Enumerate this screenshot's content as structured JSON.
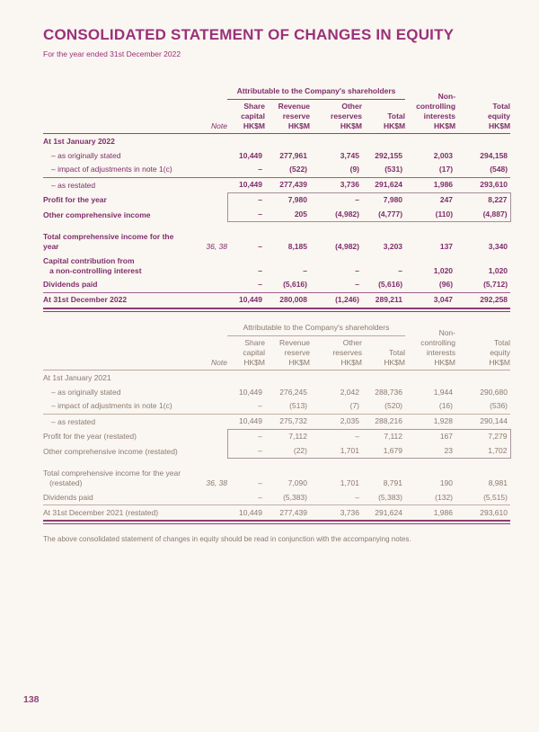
{
  "page": {
    "title": "CONSOLIDATED STATEMENT OF CHANGES IN EQUITY",
    "subtitle": "For the year ended 31st December 2022",
    "footnote": "The above consolidated statement of changes in equity should be read in conjunction with the accompanying notes.",
    "page_number": "138"
  },
  "colors": {
    "background": "#faf6f1",
    "accent_purple": "#9a3179",
    "table1_text": "#7e2e6b",
    "table1_rule": "#8e3a78",
    "table2_text": "#8b7b70",
    "table2_rule": "#b8aa9e"
  },
  "t1": {
    "span_head": "Attributable to the Company's shareholders",
    "note_head": "Note",
    "col_heads": [
      "Share\ncapital\nHK$M",
      "Revenue\nreserve\nHK$M",
      "Other\nreserves\nHK$M",
      "Total\nHK$M",
      "Non-\ncontrolling\ninterests\nHK$M",
      "Total\nequity\nHK$M"
    ],
    "rows": [
      {
        "label": "At 1st January 2022",
        "note": "",
        "v": [
          "",
          "",
          "",
          "",
          "",
          ""
        ]
      },
      {
        "label": "– as originally stated",
        "note": "",
        "v": [
          "10,449",
          "277,961",
          "3,745",
          "292,155",
          "2,003",
          "294,158"
        ]
      },
      {
        "label": "– impact of adjustments in note 1(c)",
        "note": "",
        "v": [
          "–",
          "(522)",
          "(9)",
          "(531)",
          "(17)",
          "(548)"
        ]
      },
      {
        "label": "– as restated",
        "note": "",
        "v": [
          "10,449",
          "277,439",
          "3,736",
          "291,624",
          "1,986",
          "293,610"
        ]
      },
      {
        "label": "Profit for the year",
        "note": "",
        "v": [
          "–",
          "7,980",
          "–",
          "7,980",
          "247",
          "8,227"
        ]
      },
      {
        "label": "Other comprehensive income",
        "note": "",
        "v": [
          "–",
          "205",
          "(4,982)",
          "(4,777)",
          "(110)",
          "(4,887)"
        ]
      },
      {
        "label": "Total comprehensive income for the year",
        "note": "36, 38",
        "v": [
          "–",
          "8,185",
          "(4,982)",
          "3,203",
          "137",
          "3,340"
        ]
      },
      {
        "label": "Capital contribution from\n   a non-controlling interest",
        "note": "",
        "v": [
          "–",
          "–",
          "–",
          "–",
          "1,020",
          "1,020"
        ]
      },
      {
        "label": "Dividends paid",
        "note": "",
        "v": [
          "–",
          "(5,616)",
          "–",
          "(5,616)",
          "(96)",
          "(5,712)"
        ]
      },
      {
        "label": "At 31st December 2022",
        "note": "",
        "v": [
          "10,449",
          "280,008",
          "(1,246)",
          "289,211",
          "3,047",
          "292,258"
        ]
      }
    ]
  },
  "t2": {
    "span_head": "Attributable to the Company's shareholders",
    "note_head": "Note",
    "col_heads": [
      "Share\ncapital\nHK$M",
      "Revenue\nreserve\nHK$M",
      "Other\nreserves\nHK$M",
      "Total\nHK$M",
      "Non-\ncontrolling\ninterests\nHK$M",
      "Total\nequity\nHK$M"
    ],
    "rows": [
      {
        "label": "At 1st January 2021",
        "note": "",
        "v": [
          "",
          "",
          "",
          "",
          "",
          ""
        ]
      },
      {
        "label": "– as originally stated",
        "note": "",
        "v": [
          "10,449",
          "276,245",
          "2,042",
          "288,736",
          "1,944",
          "290,680"
        ]
      },
      {
        "label": "– impact of adjustments in note 1(c)",
        "note": "",
        "v": [
          "–",
          "(513)",
          "(7)",
          "(520)",
          "(16)",
          "(536)"
        ]
      },
      {
        "label": "– as restated",
        "note": "",
        "v": [
          "10,449",
          "275,732",
          "2,035",
          "288,216",
          "1,928",
          "290,144"
        ]
      },
      {
        "label": "Profit for the year (restated)",
        "note": "",
        "v": [
          "–",
          "7,112",
          "–",
          "7,112",
          "167",
          "7,279"
        ]
      },
      {
        "label": "Other comprehensive income (restated)",
        "note": "",
        "v": [
          "–",
          "(22)",
          "1,701",
          "1,679",
          "23",
          "1,702"
        ]
      },
      {
        "label": "Total comprehensive income for the year\n   (restated)",
        "note": "36, 38",
        "v": [
          "–",
          "7,090",
          "1,701",
          "8,791",
          "190",
          "8,981"
        ]
      },
      {
        "label": "Dividends paid",
        "note": "",
        "v": [
          "–",
          "(5,383)",
          "–",
          "(5,383)",
          "(132)",
          "(5,515)"
        ]
      },
      {
        "label": "At 31st December 2021 (restated)",
        "note": "",
        "v": [
          "10,449",
          "277,439",
          "3,736",
          "291,624",
          "1,986",
          "293,610"
        ]
      }
    ]
  }
}
